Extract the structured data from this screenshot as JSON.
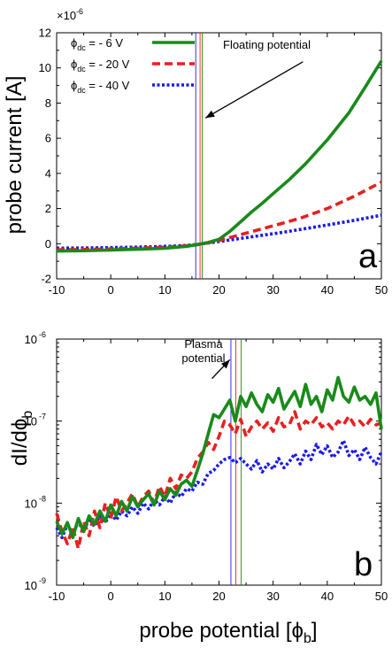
{
  "figure": {
    "shared_xlabel": "probe potential [ϕb]",
    "shared_xlabel_main": "probe potential [ϕ",
    "shared_xlabel_sub": "b",
    "shared_xlabel_end": "]"
  },
  "colors": {
    "green": "#1a8a1a",
    "red": "#e82020",
    "blue": "#1a1aee"
  },
  "chart_data": [
    {
      "id": "a",
      "panel_letter": "a",
      "type": "line",
      "ylabel": "probe current  [A]",
      "y_multiplier_base": "×10",
      "y_multiplier_exp": "-6",
      "xlim": [
        -10,
        50
      ],
      "ylim": [
        -2,
        12
      ],
      "xticks": [
        -10,
        0,
        10,
        20,
        30,
        40,
        50
      ],
      "yticks": [
        -2,
        0,
        2,
        4,
        6,
        8,
        10,
        12
      ],
      "legend_position": "top-left",
      "series": [
        {
          "name": "ϕdc = - 6 V",
          "name_main": "ϕ",
          "name_sub": "dc",
          "name_end": " = - 6 V",
          "color": "#1a8a1a",
          "dash": "solid",
          "x": [
            -10,
            -5,
            0,
            5,
            10,
            14,
            16,
            18,
            20,
            22,
            24,
            26,
            28,
            30,
            33,
            36,
            40,
            44,
            47,
            50
          ],
          "y": [
            -0.42,
            -0.4,
            -0.36,
            -0.32,
            -0.26,
            -0.15,
            -0.05,
            0.07,
            0.25,
            0.7,
            1.25,
            1.8,
            2.3,
            2.85,
            3.65,
            4.55,
            5.9,
            7.45,
            8.9,
            10.4
          ]
        },
        {
          "name": "ϕdc = - 20 V",
          "name_main": "ϕ",
          "name_sub": "dc",
          "name_end": " = - 20 V",
          "color": "#e82020",
          "dash": "dashed",
          "x": [
            -10,
            -5,
            0,
            5,
            10,
            14,
            16,
            18,
            20,
            22,
            25,
            28,
            31,
            35,
            40,
            45,
            50
          ],
          "y": [
            -0.35,
            -0.33,
            -0.3,
            -0.26,
            -0.2,
            -0.12,
            -0.05,
            0.05,
            0.18,
            0.35,
            0.6,
            0.85,
            1.1,
            1.45,
            2.0,
            2.7,
            3.5
          ]
        },
        {
          "name": "ϕdc = - 40 V",
          "name_main": "ϕ",
          "name_sub": "dc",
          "name_end": " = - 40 V",
          "color": "#1a1aee",
          "dash": "dotted",
          "x": [
            -10,
            -5,
            0,
            5,
            10,
            14,
            16,
            18,
            20,
            24,
            28,
            32,
            36,
            40,
            45,
            50
          ],
          "y": [
            -0.25,
            -0.24,
            -0.22,
            -0.19,
            -0.15,
            -0.1,
            -0.04,
            0.04,
            0.12,
            0.3,
            0.48,
            0.66,
            0.86,
            1.06,
            1.33,
            1.62
          ]
        }
      ],
      "vlines": [
        {
          "x": 16.9,
          "color": "#1a8a1a"
        },
        {
          "x": 16.5,
          "color": "#e82020"
        },
        {
          "x": 15.7,
          "color": "#1a1aee"
        }
      ],
      "annotation": {
        "text": "Floating potential",
        "arrow_from": [
          35.5,
          10.35
        ],
        "arrow_to": [
          17.5,
          7.15
        ]
      }
    },
    {
      "id": "b",
      "panel_letter": "b",
      "type": "line",
      "yscale": "log",
      "ylabel": "dI/dϕb",
      "ylabel_main": "dI/dϕ",
      "ylabel_sub": "b",
      "xlim": [
        -10,
        50
      ],
      "ylim": [
        1e-09,
        1e-06
      ],
      "xticks": [
        -10,
        0,
        10,
        20,
        30,
        40,
        50
      ],
      "yticks": [
        {
          "value": 1e-09,
          "base": "10",
          "exp": "-9"
        },
        {
          "value": 1e-08,
          "base": "10",
          "exp": "-8"
        },
        {
          "value": 1e-07,
          "base": "10",
          "exp": "-7"
        },
        {
          "value": 1e-06,
          "base": "10",
          "exp": "-6"
        }
      ],
      "series": [
        {
          "name": "ϕdc = - 6 V",
          "color": "#1a8a1a",
          "dash": "solid",
          "x": [
            -10,
            -9,
            -8,
            -7,
            -6,
            -5,
            -4,
            -3,
            -2,
            -1,
            0,
            1,
            2,
            3,
            4,
            5,
            6,
            7,
            8,
            9,
            10,
            11,
            12,
            13,
            14,
            15,
            16,
            17,
            18,
            19,
            20,
            21,
            22,
            23,
            24,
            25,
            26,
            27,
            28,
            29,
            30,
            31,
            32,
            33,
            34,
            35,
            36,
            37,
            38,
            39,
            40,
            41,
            42,
            43,
            44,
            45,
            46,
            47,
            48,
            49,
            50
          ],
          "y": [
            6e-09,
            4.2e-09,
            5.8e-09,
            3.8e-09,
            6.5e-09,
            4.5e-09,
            7e-09,
            5.5e-09,
            8e-09,
            6e-09,
            9.5e-09,
            7e-09,
            1.05e-08,
            8e-09,
            1.2e-08,
            9e-09,
            1.1e-08,
            1.3e-08,
            9.5e-09,
            1.4e-08,
            1.1e-08,
            1.5e-08,
            1.25e-08,
            1.7e-08,
            1.9e-08,
            1.6e-08,
            2.5e-08,
            4e-08,
            7e-08,
            1.2e-07,
            1.1e-07,
            1.4e-07,
            1.8e-07,
            1e-07,
            2e-07,
            1.5e-07,
            2.2e-07,
            1.6e-07,
            1.3e-07,
            2.1e-07,
            1.7e-07,
            2.5e-07,
            1.4e-07,
            1.8e-07,
            2.3e-07,
            1.5e-07,
            2.8e-07,
            1.6e-07,
            2e-07,
            1.3e-07,
            2.4e-07,
            1.8e-07,
            3.4e-07,
            2e-07,
            1.7e-07,
            2.6e-07,
            1.8e-07,
            2e-07,
            1.6e-07,
            2.2e-07,
            8e-08
          ]
        },
        {
          "name": "ϕdc = - 20 V",
          "color": "#e82020",
          "dash": "dashed",
          "x": [
            -10,
            -9,
            -8,
            -7,
            -6,
            -5,
            -4,
            -3,
            -2,
            -1,
            0,
            1,
            2,
            3,
            4,
            5,
            6,
            7,
            8,
            9,
            10,
            11,
            12,
            13,
            14,
            15,
            16,
            17,
            18,
            19,
            20,
            21,
            22,
            23,
            24,
            25,
            26,
            27,
            28,
            29,
            30,
            31,
            32,
            33,
            34,
            35,
            36,
            37,
            38,
            39,
            40,
            41,
            42,
            43,
            44,
            45,
            46,
            47,
            48,
            49,
            50
          ],
          "y": [
            7.5e-09,
            4.5e-09,
            3.2e-09,
            5e-09,
            2.8e-09,
            6e-09,
            4e-09,
            8e-09,
            5e-09,
            1e-08,
            6.5e-09,
            1.2e-08,
            8e-09,
            1e-08,
            1.3e-08,
            9e-09,
            1.2e-08,
            1.4e-08,
            1e-08,
            1.6e-08,
            1.2e-08,
            2e-08,
            1.5e-08,
            2.2e-08,
            2e-08,
            2.4e-08,
            3.5e-08,
            4.2e-08,
            5.5e-08,
            4.5e-08,
            6.5e-08,
            1e-07,
            9e-08,
            7e-08,
            1.05e-07,
            6.5e-08,
            8.5e-08,
            1e-07,
            8e-08,
            9.5e-08,
            7.5e-08,
            1.1e-07,
            8.5e-08,
            9e-08,
            1.3e-07,
            8e-08,
            1e-07,
            9e-08,
            1.1e-07,
            8.5e-08,
            9.5e-08,
            8e-08,
            1e-07,
            9e-08,
            1.15e-07,
            9e-08,
            1e-07,
            8.5e-08,
            1.05e-07,
            9e-08,
            9.5e-08
          ]
        },
        {
          "name": "ϕdc = - 40 V",
          "color": "#1a1aee",
          "dash": "dotted",
          "x": [
            -10,
            -9,
            -8,
            -7,
            -6,
            -5,
            -4,
            -3,
            -2,
            -1,
            0,
            1,
            2,
            3,
            4,
            5,
            6,
            7,
            8,
            9,
            10,
            11,
            12,
            13,
            14,
            15,
            16,
            17,
            18,
            19,
            20,
            21,
            22,
            23,
            24,
            25,
            26,
            27,
            28,
            29,
            30,
            31,
            32,
            33,
            34,
            35,
            36,
            37,
            38,
            39,
            40,
            41,
            42,
            43,
            44,
            45,
            46,
            47,
            48,
            49,
            50
          ],
          "y": [
            5e-09,
            3.8e-09,
            5.5e-09,
            4.2e-09,
            6e-09,
            4.5e-09,
            6.5e-09,
            5.2e-09,
            7e-09,
            5.8e-09,
            7.5e-09,
            6.2e-09,
            8e-09,
            7e-09,
            9e-09,
            7.5e-09,
            1e-08,
            8.5e-09,
            1.1e-08,
            9.5e-09,
            1.2e-08,
            1e-08,
            1.35e-08,
            1.2e-08,
            1.5e-08,
            1.4e-08,
            1.8e-08,
            1.7e-08,
            2.3e-08,
            2.5e-08,
            3e-08,
            3.4e-08,
            3.6e-08,
            3.1e-08,
            3.5e-08,
            3e-08,
            2.6e-08,
            3.3e-08,
            2.4e-08,
            3e-08,
            2.6e-08,
            3.5e-08,
            2.7e-08,
            3.2e-08,
            4e-08,
            3e-08,
            4.3e-08,
            3.4e-08,
            5.2e-08,
            3.9e-08,
            5e-08,
            3.6e-08,
            4.2e-08,
            5.8e-08,
            3.8e-08,
            4.5e-08,
            3.4e-08,
            4.8e-08,
            3.6e-08,
            3e-08,
            4.2e-08
          ]
        }
      ],
      "vlines": [
        {
          "x": 24.1,
          "color": "#1a8a1a"
        },
        {
          "x": 23.1,
          "color": "#e82020"
        },
        {
          "x": 22.2,
          "color": "#1a1aee"
        }
      ],
      "annotation": {
        "text_line1": "Plasma",
        "text_line2": "potential",
        "arrow_from": [
          18.7,
          3.3e-07
        ],
        "arrow_to": [
          22.0,
          5.6e-07
        ]
      }
    }
  ]
}
